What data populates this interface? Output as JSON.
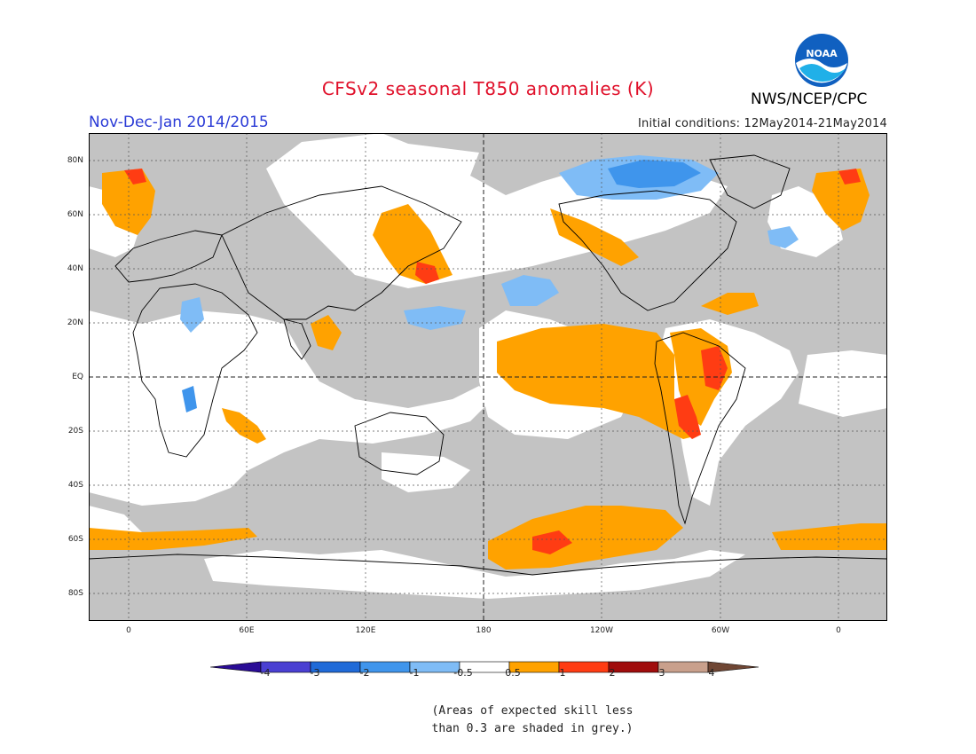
{
  "header": {
    "title": "CFSv2 seasonal T850 anomalies (K)",
    "period": "Nov-Dec-Jan 2014/2015",
    "initial_conditions": "Initial conditions: 12May2014-21May2014",
    "org": "NWS/NCEP/CPC",
    "logo_text": "NOAA"
  },
  "map": {
    "lat_labels": [
      "80N",
      "60N",
      "40N",
      "20N",
      "EQ",
      "20S",
      "40S",
      "60S",
      "80S"
    ],
    "lon_labels": [
      "0",
      "60E",
      "120E",
      "180",
      "120W",
      "60W",
      "0"
    ]
  },
  "legend": {
    "ticks": [
      "-4",
      "-3",
      "-2",
      "-1",
      "-0.5",
      "0.5",
      "1",
      "2",
      "3",
      "4"
    ],
    "colors": [
      "#2a0c96",
      "#4a3fd2",
      "#1f6ad8",
      "#3f95ec",
      "#7fbcf6",
      "#ffffff",
      "#ffa200",
      "#ff3c13",
      "#a00c0c",
      "#c9a08c",
      "#6f4634"
    ],
    "note_line1": "(Areas of expected skill less",
    "note_line2": "than 0.3 are shaded in grey.)"
  }
}
